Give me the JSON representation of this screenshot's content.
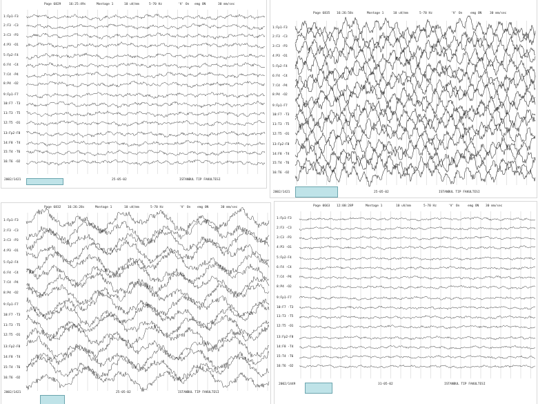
{
  "panels": [
    {
      "header": {
        "page": "Page 6829",
        "time": "16:25:49s",
        "montage": "Montage 1",
        "sens": "10 uV/mm",
        "filter": "5-70 Hz",
        "marker": "'V' On",
        "emg": "emg ON",
        "speed": "30 mm/sec"
      },
      "footer": {
        "id": "2002/1421",
        "date": "25-05-02",
        "institution": "ISTANBUL TIP FAKULTESI"
      },
      "channels": [
        "1:Fp1-F3",
        "2:F3 -C3",
        "3:C3 -P3",
        "4:P3 -O1",
        "5:Fp2-F4",
        "6:F4 -C4",
        "7:C4 -P4",
        "8:P4 -O2",
        "9:Fp1-F7",
        "10:F7 -T3",
        "11:T3 -T5",
        "12:T5 -O1",
        "13:Fp2-F8",
        "14:F8 -T4",
        "15:T4 -T6",
        "16:T6 -O2"
      ]
    },
    {
      "header": {
        "page": "Page 6835",
        "time": "16:26:58s",
        "montage": "Montage 1",
        "sens": "10 uV/mm",
        "filter": "5-70 Hz",
        "marker": "'V' On",
        "emg": "emg ON",
        "speed": "30 mm/sec"
      },
      "footer": {
        "id": "2002/1421",
        "date": "25-05-02",
        "institution": "ISTANBUL TIP FAKULTESI"
      },
      "channels": [
        "1:Fp1-F3",
        "2:F3 -C3",
        "3:C3 -P3",
        "4:P3 -O1",
        "5:Fp2-F4",
        "6:F4 -C4",
        "7:C4 -P4",
        "8:P4 -O2",
        "9:Fp1-F7",
        "10:F7 -T3",
        "11:T3 -T5",
        "12:T5 -O1",
        "13:Fp2-F8",
        "14:F8 -T4",
        "15:T4 -T6",
        "16:T6 -O2"
      ]
    },
    {
      "header": {
        "page": "Page 6832",
        "time": "16:26:28s",
        "montage": "Montage 1",
        "sens": "10 uV/mm",
        "filter": "5-70 Hz",
        "marker": "'V' On",
        "emg": "emg ON",
        "speed": "30 mm/sec"
      },
      "footer": {
        "id": "2002/1421",
        "date": "25-05-02",
        "institution": "ISTANBUL TIP FAKULTESI"
      },
      "channels": [
        "1:Fp1-F3",
        "2:F3 -C3",
        "3:C3 -P3",
        "4:P3 -O1",
        "5:Fp2-F4",
        "6:F4 -C4",
        "7:C4 -P4",
        "8:P4 -O2",
        "9:Fp1-F7",
        "10:F7 -T3",
        "11:T3 -T5",
        "12:T5 -O1",
        "13:Fp2-F8",
        "14:F8 -T4",
        "15:T4 -T6",
        "16:T6 -O2"
      ]
    },
    {
      "header": {
        "page": "Page 0663",
        "time": "12:00:28P",
        "montage": "Montage 1",
        "sens": "10 uV/mm",
        "filter": "5-70 Hz",
        "marker": "'V' On",
        "emg": "emg ON",
        "speed": "30 mm/sec"
      },
      "footer": {
        "id": "2002/1449",
        "date": "31-05-02",
        "institution": "ISTANBUL TIP FAKULTESI"
      },
      "channels": [
        "1:Fp1-F3",
        "2:F3 -C3",
        "3:C3 -P3",
        "4:P3 -O1",
        "5:Fp2-F4",
        "6:F4 -C4",
        "7:C4 -P4",
        "8:P4 -O2",
        "9:Fp1-F7",
        "10:F7 -T3",
        "11:T3 -T5",
        "12:T5 -O1",
        "13:Fp2-F8",
        "14:F8 -T4",
        "15:T4 -T6",
        "16:T6 -O2"
      ]
    }
  ]
}
